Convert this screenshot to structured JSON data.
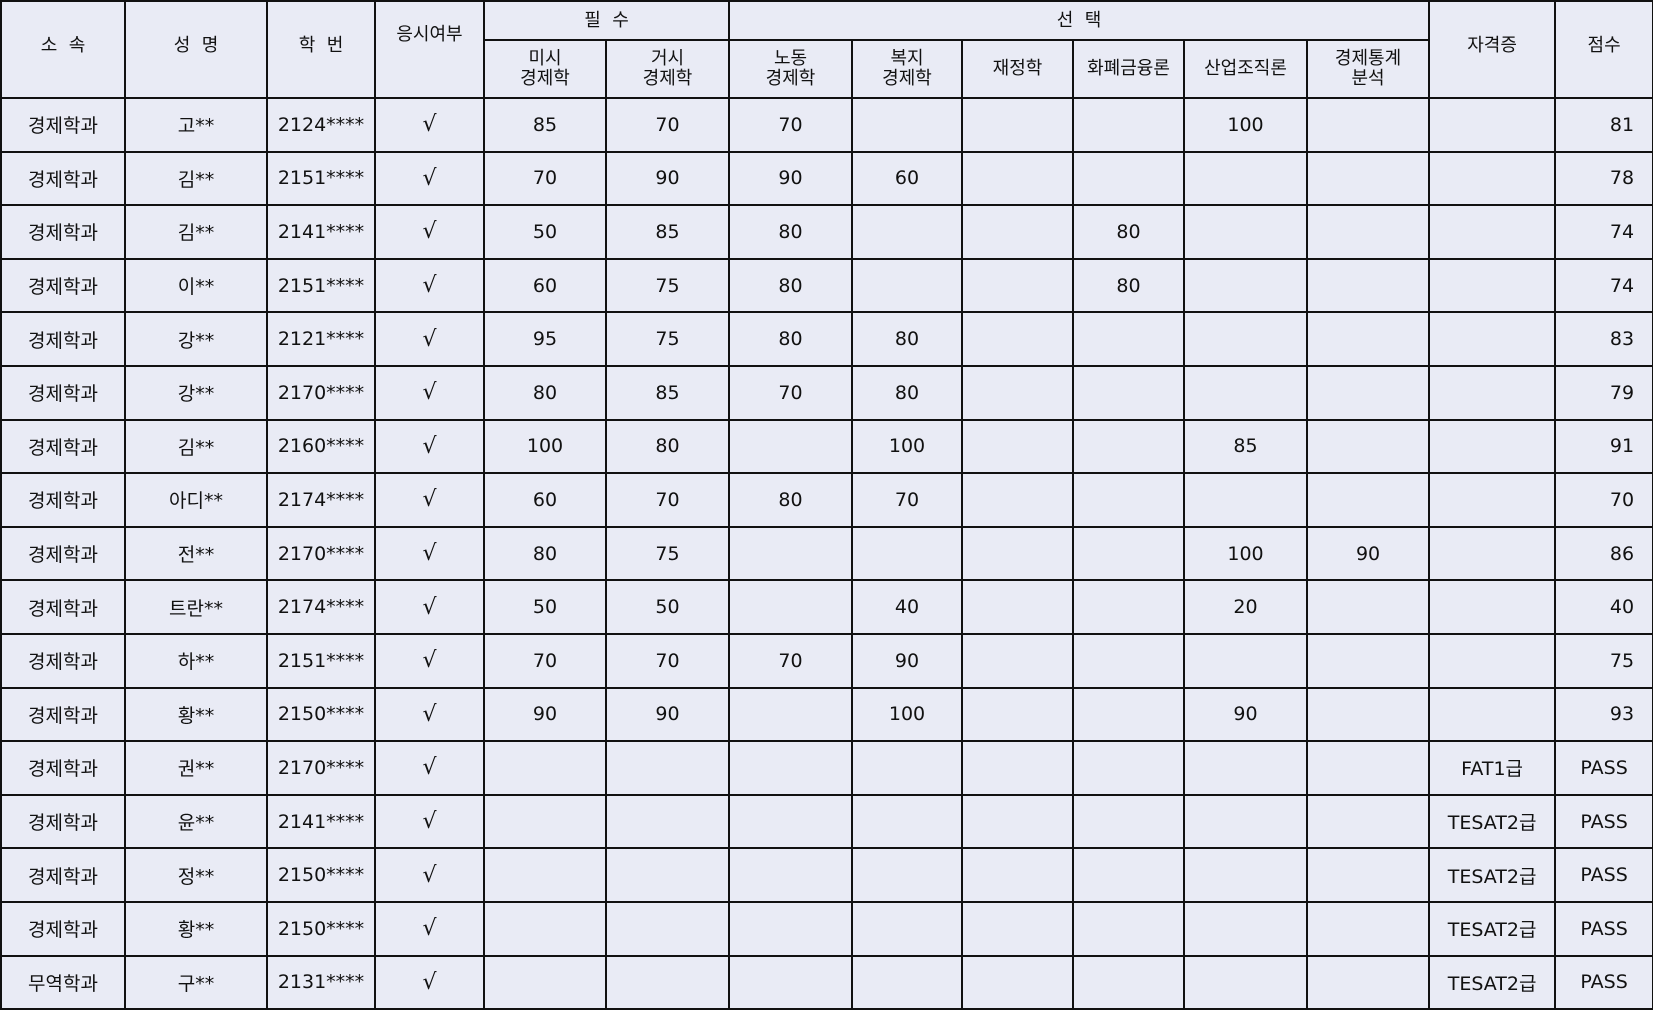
{
  "headers": {
    "dept": "소  속",
    "name": "성  명",
    "student_id": "학  번",
    "attended": "응시여부",
    "required_group": "필  수",
    "elective_group": "선  택",
    "micro": "미시\n경제학",
    "macro": "거시\n경제학",
    "labor": "노동\n경제학",
    "welfare": "복지\n경제학",
    "finance": "재정학",
    "money": "화폐금융론",
    "industrial": "산업조직론",
    "stats": "경제통계\n분석",
    "certificate": "자격증",
    "score": "점수"
  },
  "rows": [
    [
      "경제학과",
      "고**",
      "2124****",
      "√",
      "85",
      "70",
      "70",
      "",
      "",
      "",
      "100",
      "",
      "",
      "81"
    ],
    [
      "경제학과",
      "김**",
      "2151****",
      "√",
      "70",
      "90",
      "90",
      "60",
      "",
      "",
      "",
      "",
      "",
      "78"
    ],
    [
      "경제학과",
      "김**",
      "2141****",
      "√",
      "50",
      "85",
      "80",
      "",
      "",
      "80",
      "",
      "",
      "",
      "74"
    ],
    [
      "경제학과",
      "이**",
      "2151****",
      "√",
      "60",
      "75",
      "80",
      "",
      "",
      "80",
      "",
      "",
      "",
      "74"
    ],
    [
      "경제학과",
      "강**",
      "2121****",
      "√",
      "95",
      "75",
      "80",
      "80",
      "",
      "",
      "",
      "",
      "",
      "83"
    ],
    [
      "경제학과",
      "강**",
      "2170****",
      "√",
      "80",
      "85",
      "70",
      "80",
      "",
      "",
      "",
      "",
      "",
      "79"
    ],
    [
      "경제학과",
      "김**",
      "2160****",
      "√",
      "100",
      "80",
      "",
      "100",
      "",
      "",
      "85",
      "",
      "",
      "91"
    ],
    [
      "경제학과",
      "아디**",
      "2174****",
      "√",
      "60",
      "70",
      "80",
      "70",
      "",
      "",
      "",
      "",
      "",
      "70"
    ],
    [
      "경제학과",
      "전**",
      "2170****",
      "√",
      "80",
      "75",
      "",
      "",
      "",
      "",
      "100",
      "90",
      "",
      "86"
    ],
    [
      "경제학과",
      "트란**",
      "2174****",
      "√",
      "50",
      "50",
      "",
      "40",
      "",
      "",
      "20",
      "",
      "",
      "40"
    ],
    [
      "경제학과",
      "하**",
      "2151****",
      "√",
      "70",
      "70",
      "70",
      "90",
      "",
      "",
      "",
      "",
      "",
      "75"
    ],
    [
      "경제학과",
      "황**",
      "2150****",
      "√",
      "90",
      "90",
      "",
      "100",
      "",
      "",
      "90",
      "",
      "",
      "93"
    ],
    [
      "경제학과",
      "권**",
      "2170****",
      "√",
      "",
      "",
      "",
      "",
      "",
      "",
      "",
      "",
      "FAT1급",
      "PASS"
    ],
    [
      "경제학과",
      "윤**",
      "2141****",
      "√",
      "",
      "",
      "",
      "",
      "",
      "",
      "",
      "",
      "TESAT2급",
      "PASS"
    ],
    [
      "경제학과",
      "정**",
      "2150****",
      "√",
      "",
      "",
      "",
      "",
      "",
      "",
      "",
      "",
      "TESAT2급",
      "PASS"
    ],
    [
      "경제학과",
      "황**",
      "2150****",
      "√",
      "",
      "",
      "",
      "",
      "",
      "",
      "",
      "",
      "TESAT2급",
      "PASS"
    ],
    [
      "무역학과",
      "구**",
      "2131****",
      "√",
      "",
      "",
      "",
      "",
      "",
      "",
      "",
      "",
      "TESAT2급",
      "PASS"
    ]
  ],
  "colors": {
    "cell_background": "#e9ebf5",
    "border": "#111111"
  }
}
